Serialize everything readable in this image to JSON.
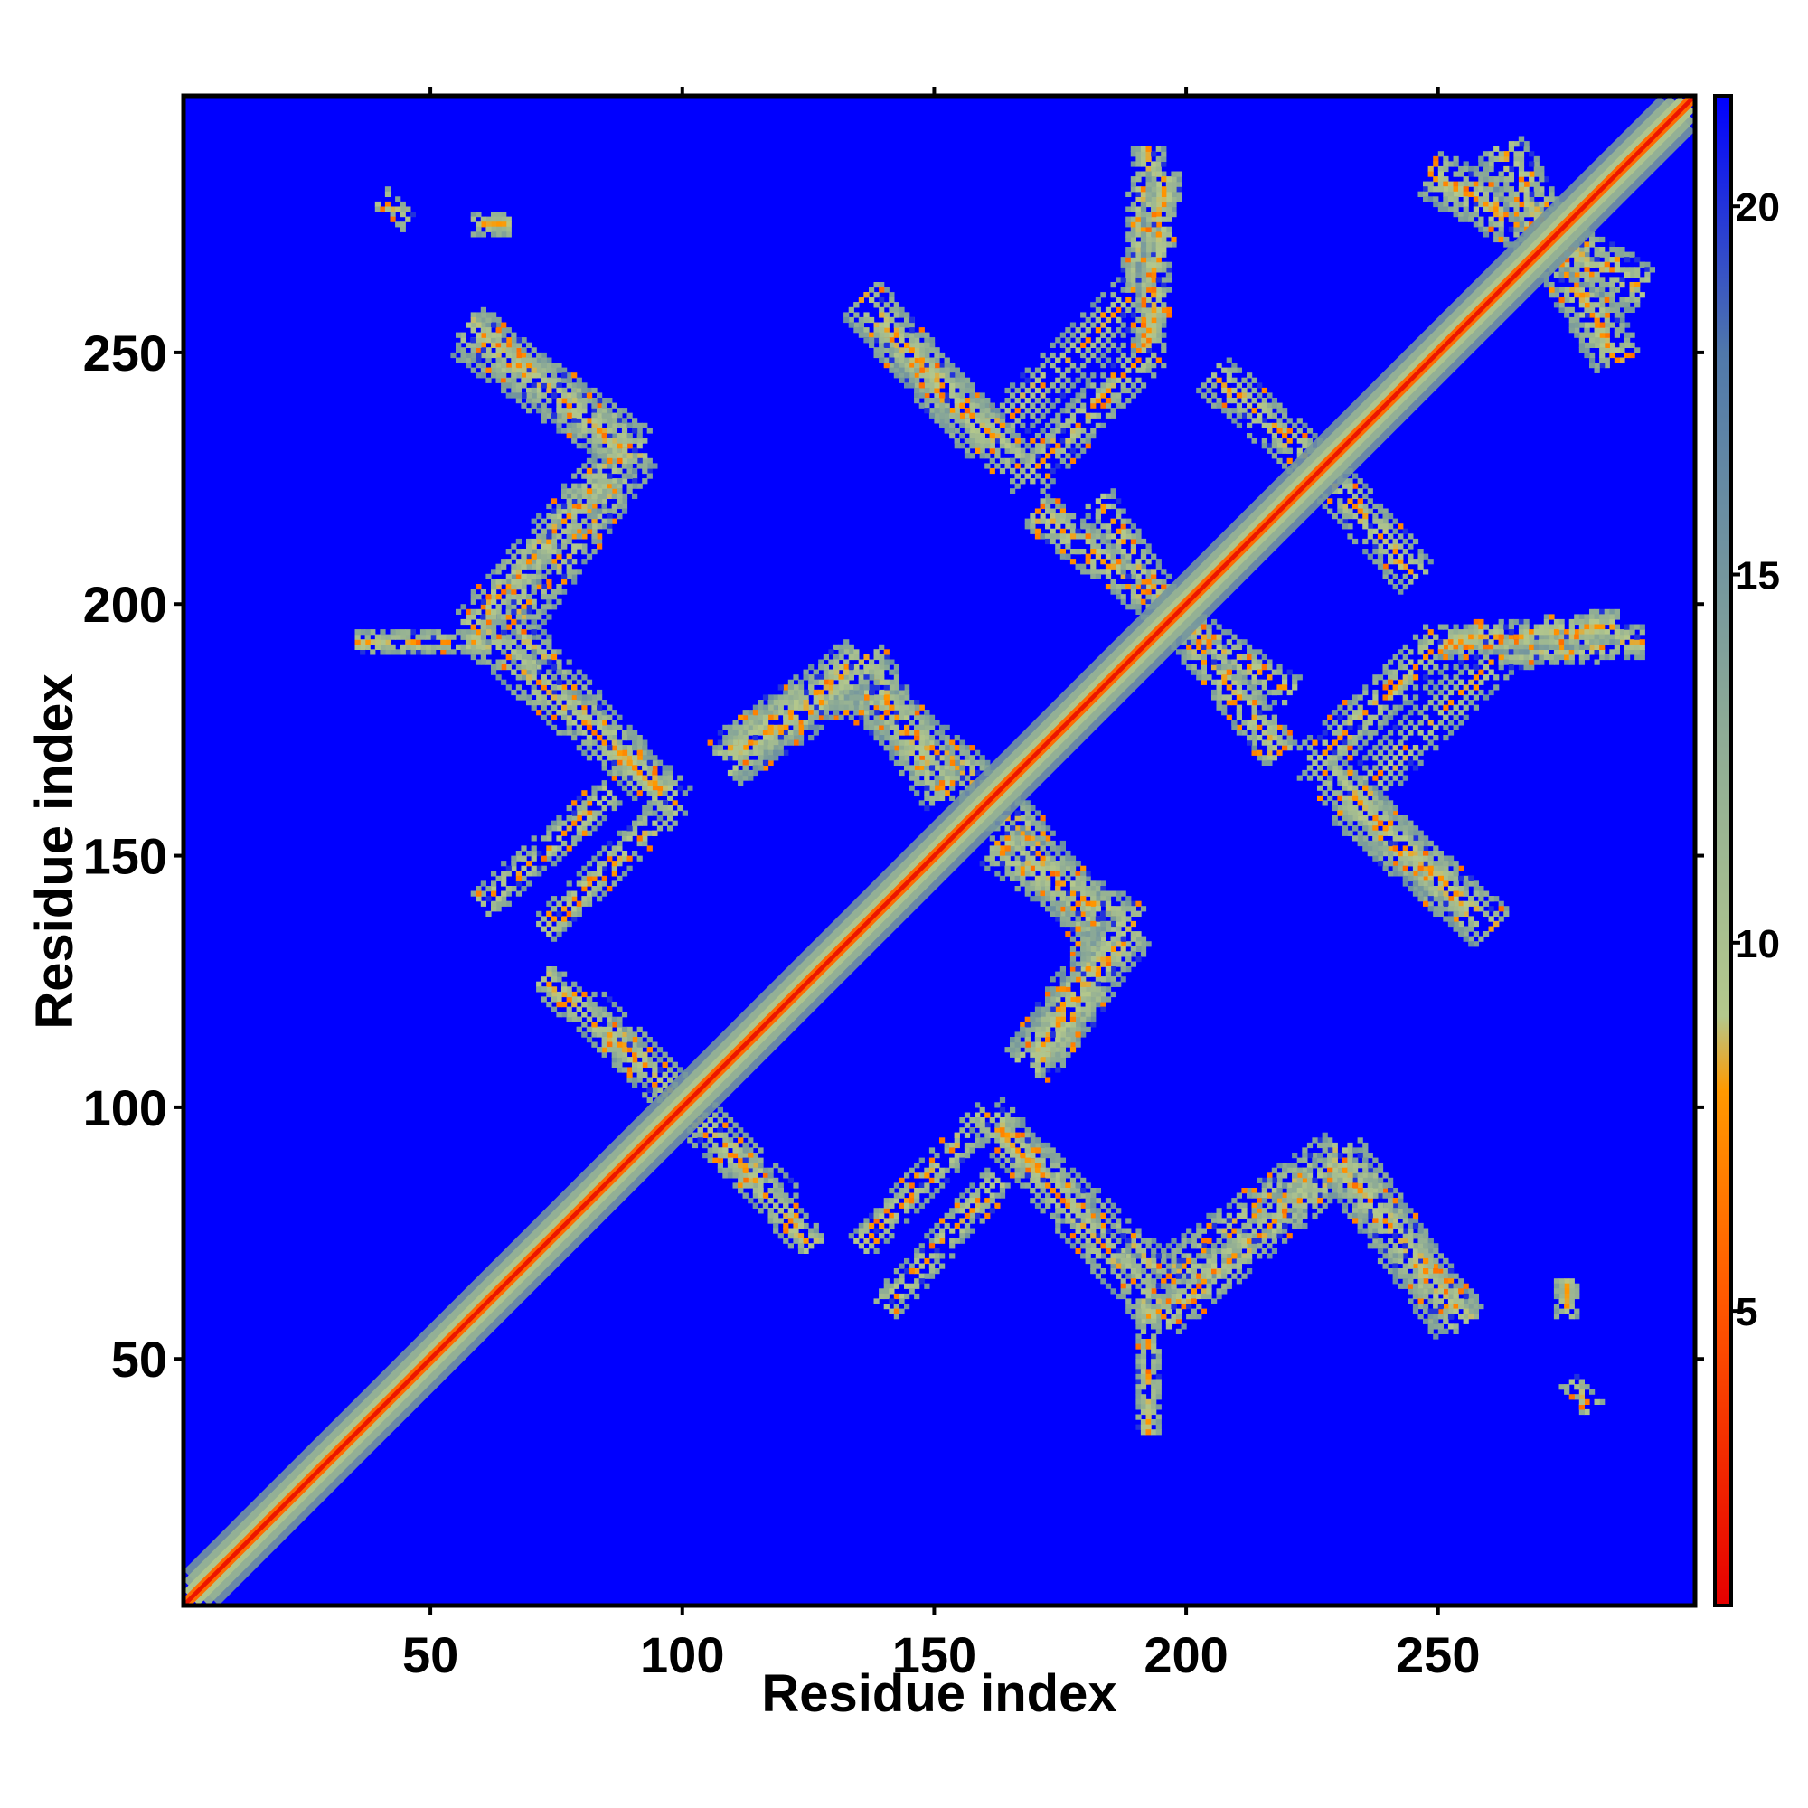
{
  "chart_data": {
    "type": "heatmap",
    "title": "",
    "xlabel": "Residue index",
    "ylabel": "Residue index",
    "n_residues": 300,
    "xlim": [
      1,
      301
    ],
    "ylim": [
      1,
      301
    ],
    "x_ticks": [
      50,
      100,
      150,
      200,
      250
    ],
    "y_ticks": [
      50,
      100,
      150,
      200,
      250
    ],
    "x_tick_labels": [
      "50",
      "100",
      "150",
      "200",
      "250"
    ],
    "y_tick_labels": [
      "50",
      "100",
      "150",
      "200",
      "250"
    ],
    "colorbar": {
      "range": [
        1,
        21.5
      ],
      "ticks": [
        5,
        10,
        15,
        20
      ],
      "tick_labels": [
        "5",
        "10",
        "15",
        "20"
      ],
      "colors": [
        {
          "value": 1,
          "color": "#e60000"
        },
        {
          "value": 5,
          "color": "#ff5500"
        },
        {
          "value": 8,
          "color": "#ff9900"
        },
        {
          "value": 9,
          "color": "#b4c88c"
        },
        {
          "value": 13,
          "color": "#8caa96"
        },
        {
          "value": 18,
          "color": "#5078aa"
        },
        {
          "value": 21.5,
          "color": "#0000ff"
        }
      ]
    },
    "background_color": "#0000ff",
    "description_values": "Symmetric residue-residue distance map. Main diagonal band at 1-3 (red); off-diagonal contact bands at roughly 5-14.",
    "contact_bands": [
      {
        "from": [
          57,
          253
        ],
        "to": [
          90,
          230
        ],
        "width": 5
      },
      {
        "from": [
          90,
          230
        ],
        "to": [
          65,
          195
        ],
        "width": 5
      },
      {
        "from": [
          65,
          195
        ],
        "to": [
          95,
          162
        ],
        "width": 4
      },
      {
        "from": [
          60,
          192
        ],
        "to": [
          35,
          192
        ],
        "width": 2
      },
      {
        "from": [
          40,
          280
        ],
        "to": [
          45,
          276
        ],
        "width": 2
      },
      {
        "from": [
          85,
          162
        ],
        "to": [
          60,
          140
        ],
        "width": 3
      },
      {
        "from": [
          80,
          120
        ],
        "to": [
          105,
          95
        ],
        "width": 4
      },
      {
        "from": [
          105,
          95
        ],
        "to": [
          125,
          72
        ],
        "width": 3
      },
      {
        "from": [
          135,
          72
        ],
        "to": [
          160,
          98
        ],
        "width": 3
      },
      {
        "from": [
          160,
          98
        ],
        "to": [
          195,
          58
        ],
        "width": 4
      },
      {
        "from": [
          195,
          58
        ],
        "to": [
          230,
          88
        ],
        "width": 4
      },
      {
        "from": [
          230,
          88
        ],
        "to": [
          255,
          57
        ],
        "width": 4
      },
      {
        "from": [
          108,
          168
        ],
        "to": [
          132,
          184
        ],
        "width": 5
      },
      {
        "from": [
          132,
          184
        ],
        "to": [
          160,
          162
        ],
        "width": 5
      },
      {
        "from": [
          162,
          152
        ],
        "to": [
          188,
          135
        ],
        "width": 5
      },
      {
        "from": [
          188,
          135
        ],
        "to": [
          170,
          110
        ],
        "width": 5
      },
      {
        "from": [
          135,
          260
        ],
        "to": [
          160,
          232
        ],
        "width": 5
      },
      {
        "from": [
          160,
          232
        ],
        "to": [
          190,
          262
        ],
        "width": 4
      },
      {
        "from": [
          190,
          262
        ],
        "to": [
          192,
          290
        ],
        "width": 3
      },
      {
        "from": [
          170,
          218
        ],
        "to": [
          200,
          195
        ],
        "width": 4
      },
      {
        "from": [
          200,
          195
        ],
        "to": [
          220,
          182
        ],
        "width": 3
      },
      {
        "from": [
          225,
          168
        ],
        "to": [
          255,
          140
        ],
        "width": 4
      },
      {
        "from": [
          225,
          168
        ],
        "to": [
          250,
          192
        ],
        "width": 4
      },
      {
        "from": [
          250,
          192
        ],
        "to": [
          285,
          195
        ],
        "width": 3
      },
      {
        "from": [
          248,
          285
        ],
        "to": [
          290,
          262
        ],
        "width": 5
      },
      {
        "from": [
          205,
          245
        ],
        "to": [
          228,
          225
        ],
        "width": 4
      },
      {
        "from": [
          275,
          65
        ],
        "to": [
          275,
          58
        ],
        "width": 2
      }
    ]
  }
}
